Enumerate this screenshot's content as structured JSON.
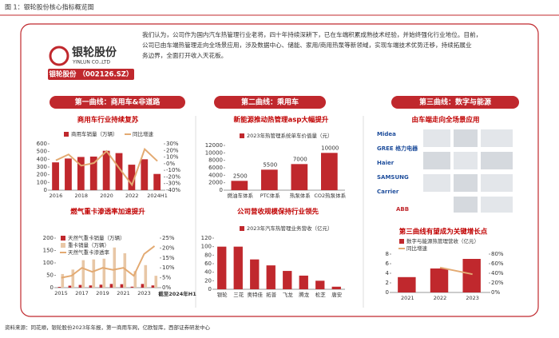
{
  "header": {
    "title": "图 1：银轮股份核心指标概览图"
  },
  "company": {
    "logo_cn": "银轮股份",
    "logo_en": "YINLUN CO.,LTD",
    "banner": "银轮股份 （002126.SZ）"
  },
  "intro": [
    "我们认为，公司作为国内汽车热管理行业老将，四十年持续深耕下，已在车端积累成熟技术经验，并始终强化行业地位。目前，",
    "公司已由车端热管理走向全场景应用，涉及数据中心、储能、家用/商用热泵等新领域，实现车端技术优势迁移，持续拓展业",
    "务边界，全面打开收入天花板。"
  ],
  "sections": [
    "第一曲线：商用车&非道路",
    "第二曲线：乘用车",
    "第三曲线：数字与能源"
  ],
  "applications": {
    "title": "由车端走向全场景应用",
    "brands": [
      "Midea",
      "GREE 格力电器",
      "Haier",
      "SAMSUNG",
      "Carrier",
      "ABB"
    ]
  },
  "source": "资料来源：同花顺，银轮股份2023年年报，第一商用车网，亿欧智库，西部证券研发中心",
  "chart_data": [
    {
      "type": "combo",
      "title": "商用车行业持续复苏",
      "categories": [
        "2016",
        null,
        "2018",
        null,
        "2020",
        null,
        "2022",
        null,
        "2024H1"
      ],
      "series": [
        {
          "name": "商用车销量（万辆）",
          "type": "bar",
          "color": "#c0282d",
          "values": [
            360,
            410,
            430,
            435,
            510,
            480,
            330,
            400,
            210
          ]
        },
        {
          "name": "同比增速",
          "type": "line",
          "axis": "y2",
          "color": "#e3aa72",
          "values": [
            5,
            14,
            -3,
            1,
            19,
            -7,
            -32,
            22,
            4
          ]
        }
      ],
      "ylim": [
        0,
        600
      ],
      "yticks": [
        0,
        100,
        200,
        300,
        400,
        500,
        600
      ],
      "y2lim": [
        -40,
        30
      ],
      "y2ticks": [
        {
          "value": -40,
          "label": "-40%"
        },
        {
          "value": -30,
          "label": "-30%"
        },
        {
          "value": -20,
          "label": "-20%"
        },
        {
          "value": -10,
          "label": "-10%"
        },
        {
          "value": 0,
          "label": "0%"
        },
        {
          "value": 10,
          "label": "10%"
        },
        {
          "value": 20,
          "label": "20%"
        },
        {
          "value": 30,
          "label": "30%"
        }
      ]
    },
    {
      "type": "bar",
      "title": "新能源推动热管理asp大幅提升",
      "categories": [
        "燃油车体系",
        "PTC体系",
        "热泵体系",
        "CO2热泵体系"
      ],
      "series": [
        {
          "name": "2023年热管理系统单车价值量（元）",
          "type": "bar",
          "color": "#c0282d",
          "values": [
            2500,
            5500,
            7000,
            10000
          ],
          "value_labels": [
            "2500",
            "5500",
            "7000",
            "10000"
          ]
        }
      ],
      "ylim": [
        0,
        12000
      ],
      "yticks": [
        0,
        2000,
        4000,
        6000,
        8000,
        10000,
        12000
      ]
    },
    {
      "type": "combo",
      "title": "燃气重卡渗透率加速提升",
      "annotation": "截至2024年H1",
      "categories": [
        "2015",
        null,
        "2017",
        null,
        "2019",
        null,
        "2021",
        null,
        "2023",
        null
      ],
      "series": [
        {
          "name": "天然气重卡销量（万辆）",
          "type": "bar",
          "color": "#c0282d",
          "values": [
            3,
            8,
            11,
            9,
            12,
            15,
            14,
            4,
            15,
            9
          ]
        },
        {
          "name": "重卡销量（万辆）",
          "type": "bar",
          "color": "#e8c7a6",
          "values": [
            55,
            73,
            111,
            114,
            117,
            162,
            139,
            67,
            91,
            48
          ]
        },
        {
          "name": "天然气重卡渗透率",
          "type": "line",
          "axis": "y2",
          "color": "#e3aa72",
          "values": [
            5,
            6,
            10,
            8,
            10,
            9,
            10,
            6,
            17,
            21
          ]
        }
      ],
      "ylim": [
        0,
        200
      ],
      "yticks": [
        0,
        50,
        100,
        150,
        200
      ],
      "y2lim": [
        0,
        25
      ],
      "y2ticks": [
        {
          "value": 0,
          "label": "0%"
        },
        {
          "value": 5,
          "label": "5%"
        },
        {
          "value": 10,
          "label": "10%"
        },
        {
          "value": 15,
          "label": "15%"
        },
        {
          "value": 20,
          "label": "20%"
        },
        {
          "value": 25,
          "label": "25%"
        }
      ]
    },
    {
      "type": "bar",
      "title": "公司营收规模保持行业领先",
      "categories": [
        "银轮",
        "三花",
        "奥特佳",
        "拓普",
        "飞龙",
        "腾龙",
        "松芝",
        "唐安"
      ],
      "series": [
        {
          "name": "2023年汽车热管理业务营收（亿元）",
          "type": "bar",
          "color": "#c0282d",
          "values": [
            100,
            100,
            70,
            56,
            43,
            32,
            20,
            6
          ]
        }
      ],
      "ylim": [
        0,
        120
      ],
      "yticks": [
        0,
        20,
        40,
        60,
        80,
        100,
        120
      ]
    },
    {
      "type": "combo",
      "title": "第三曲线有望成为关键增长点",
      "categories": [
        "2021",
        "2022",
        "2023"
      ],
      "series": [
        {
          "name": "数字与能源热管理营收（亿元）",
          "type": "bar",
          "color": "#c0282d",
          "values": [
            3.2,
            5.0,
            7.0
          ]
        },
        {
          "name": "同比增速",
          "type": "line",
          "axis": "y2",
          "color": "#e3aa72",
          "values": [
            null,
            52,
            38
          ]
        }
      ],
      "ylim": [
        0,
        8
      ],
      "yticks": [
        0,
        2,
        4,
        6,
        8
      ],
      "y2lim": [
        0,
        80
      ],
      "y2ticks": [
        {
          "value": 0,
          "label": "0%"
        },
        {
          "value": 20,
          "label": "20%"
        },
        {
          "value": 40,
          "label": "40%"
        },
        {
          "value": 60,
          "label": "60%"
        },
        {
          "value": 80,
          "label": "80%"
        }
      ]
    }
  ]
}
